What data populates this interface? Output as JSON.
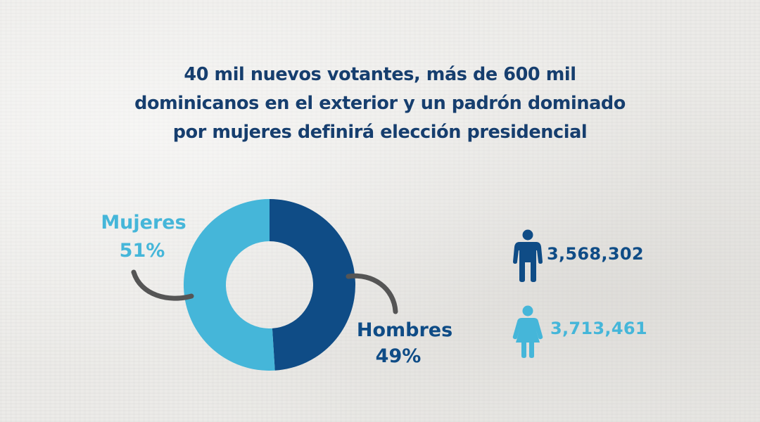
{
  "title": {
    "lines": [
      "40 mil nuevos votantes, más de 600 mil",
      "dominicanos en el exterior y un padrón dominado",
      "por mujeres definirá elección presidencial"
    ]
  },
  "colors": {
    "hombres": "#0f4c86",
    "mujeres": "#45b6d9",
    "title": "#163e6e",
    "connector": "#555555"
  },
  "chart_data": {
    "type": "pie",
    "variant": "donut",
    "title": "40 mil nuevos votantes, más de 600 mil dominicanos en el exterior y un padrón dominado por mujeres definirá elección presidencial",
    "slices": [
      {
        "label": "Hombres",
        "value": 49,
        "display": "49%",
        "color": "#0f4c86"
      },
      {
        "label": "Mujeres",
        "value": 51,
        "display": "51%",
        "color": "#45b6d9"
      }
    ],
    "legend": "none"
  },
  "stats": [
    {
      "label": "Hombres",
      "icon": "man-icon",
      "value": "3,568,302",
      "color": "#0f4c86"
    },
    {
      "label": "Mujeres",
      "icon": "woman-icon",
      "value": "3,713,461",
      "color": "#45b6d9"
    }
  ]
}
